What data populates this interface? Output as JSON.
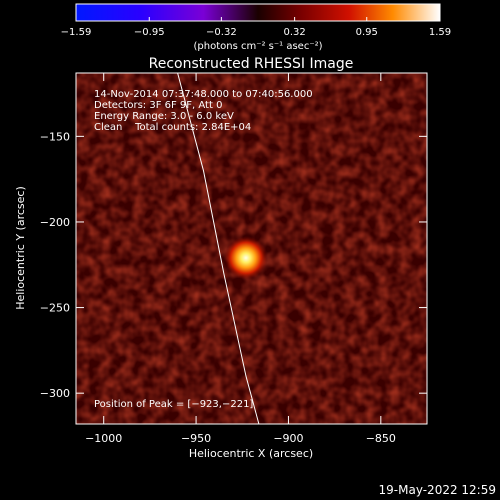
{
  "chart_data": {
    "type": "heatmap",
    "title": "Reconstructed RHESSI Image",
    "xlabel": "Heliocentric X (arcsec)",
    "ylabel": "Heliocentric Y (arcsec)",
    "xlim": [
      -1015,
      -825
    ],
    "ylim": [
      -318,
      -113
    ],
    "x_ticks": [
      -1000,
      -950,
      -900,
      -850
    ],
    "x_tick_labels": [
      "−1000",
      "−950",
      "−900",
      "−850"
    ],
    "y_ticks": [
      -300,
      -250,
      -200,
      -150
    ],
    "y_tick_labels": [
      "−300",
      "−250",
      "−200",
      "−150"
    ],
    "colorbar": {
      "min": -1.59,
      "max": 1.59,
      "ticks": [
        -1.59,
        -0.95,
        -0.32,
        0.32,
        0.95,
        1.59
      ],
      "tick_labels": [
        "−1.59",
        "−0.95",
        "−0.32",
        "0.32",
        "0.95",
        "1.59"
      ],
      "unit_label": "(photons cm⁻² s⁻¹ asec⁻²)"
    },
    "peak": {
      "x": -923,
      "y": -221,
      "value": 1.59
    },
    "info": [
      "14-Nov-2014 07:37:48.000 to 07:40:56.000",
      "Detectors: 3F 6F 9F, Att 0",
      "Energy Range: 3.0 - 6.0 keV",
      "Clean    Total counts: 2.84E+04"
    ],
    "peak_label": "Position of Peak = [−923,−221]",
    "limb_curve": [
      [
        -960,
        -113
      ],
      [
        -946,
        -170
      ],
      [
        -935,
        -230
      ],
      [
        -923,
        -290
      ],
      [
        -916,
        -318
      ]
    ],
    "grid": false
  },
  "footer": {
    "timestamp": "19-May-2022 12:59"
  }
}
